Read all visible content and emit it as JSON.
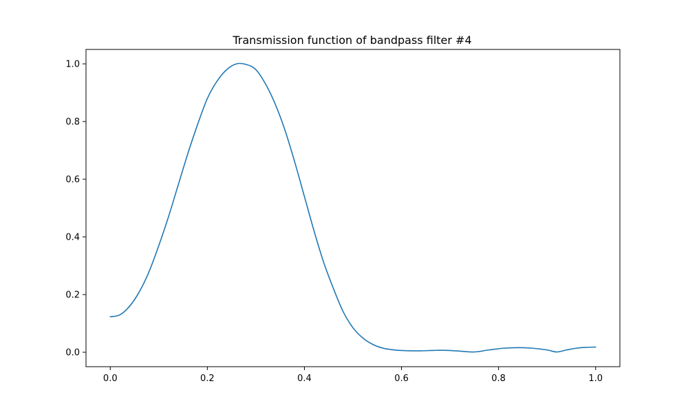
{
  "chart_data": {
    "type": "line",
    "title": "Transmission function of bandpass filter #4",
    "xlabel": "",
    "ylabel": "",
    "xlim": [
      -0.05,
      1.05
    ],
    "ylim": [
      -0.05,
      1.05
    ],
    "xticks": [
      0.0,
      0.2,
      0.4,
      0.6,
      0.8,
      1.0
    ],
    "xtick_labels": [
      "0.0",
      "0.2",
      "0.4",
      "0.6",
      "0.8",
      "1.0"
    ],
    "yticks": [
      0.0,
      0.2,
      0.4,
      0.6,
      0.8,
      1.0
    ],
    "ytick_labels": [
      "0.0",
      "0.2",
      "0.4",
      "0.6",
      "0.8",
      "1.0"
    ],
    "grid": false,
    "series": [
      {
        "color": "#1f77b4",
        "x": [
          0.0,
          0.02,
          0.04,
          0.06,
          0.08,
          0.1,
          0.12,
          0.14,
          0.16,
          0.18,
          0.2,
          0.22,
          0.24,
          0.26,
          0.28,
          0.3,
          0.32,
          0.34,
          0.36,
          0.38,
          0.4,
          0.42,
          0.44,
          0.46,
          0.48,
          0.5,
          0.52,
          0.54,
          0.56,
          0.58,
          0.6,
          0.62,
          0.64,
          0.66,
          0.68,
          0.7,
          0.72,
          0.75,
          0.78,
          0.81,
          0.84,
          0.87,
          0.9,
          0.92,
          0.94,
          0.96,
          0.98,
          1.0
        ],
        "y": [
          0.123,
          0.13,
          0.16,
          0.21,
          0.28,
          0.37,
          0.47,
          0.58,
          0.69,
          0.79,
          0.88,
          0.94,
          0.98,
          1.0,
          0.998,
          0.98,
          0.93,
          0.86,
          0.77,
          0.66,
          0.54,
          0.42,
          0.31,
          0.22,
          0.14,
          0.085,
          0.05,
          0.028,
          0.015,
          0.009,
          0.006,
          0.005,
          0.005,
          0.006,
          0.007,
          0.006,
          0.004,
          0.001,
          0.008,
          0.014,
          0.016,
          0.014,
          0.008,
          0.001,
          0.008,
          0.014,
          0.017,
          0.018
        ]
      }
    ]
  }
}
